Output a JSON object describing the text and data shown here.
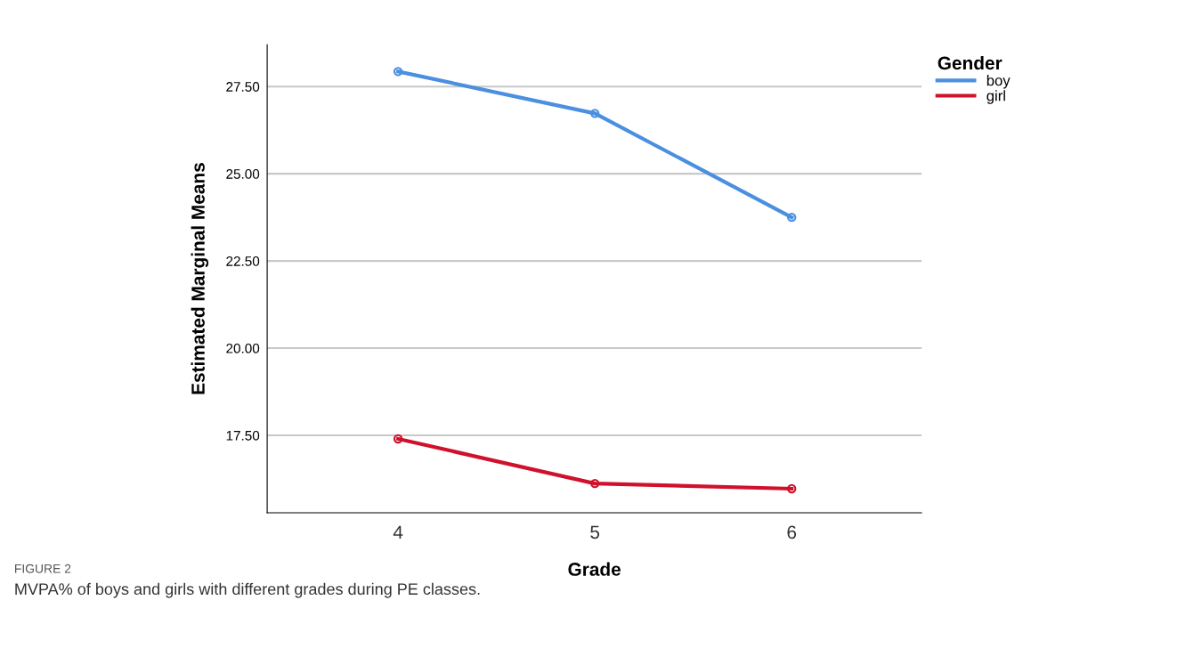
{
  "chart_data": {
    "type": "line",
    "xlabel": "Grade",
    "ylabel": "Estimated Marginal Means",
    "legend_title": "Gender",
    "categories": [
      "4",
      "5",
      "6"
    ],
    "series": [
      {
        "name": "boy",
        "color": "#4a8fe0",
        "values": [
          27.93,
          26.73,
          23.75
        ]
      },
      {
        "name": "girl",
        "color": "#d0112b",
        "values": [
          17.4,
          16.12,
          15.97
        ]
      }
    ],
    "ylim": [
      15.28,
      28.7
    ],
    "yticks": [
      {
        "value": 17.5,
        "label": "17.50"
      },
      {
        "value": 20,
        "label": "20.00"
      },
      {
        "value": 22.5,
        "label": "22.50"
      },
      {
        "value": 25,
        "label": "25.00"
      },
      {
        "value": 27.5,
        "label": "27.50"
      }
    ],
    "grid": "y",
    "legend": "top right",
    "marker": "circle",
    "line_style": "solid",
    "annotations": [
      "FIGURE 2",
      "MVPA% of boys and girls with different grades during PE classes."
    ]
  }
}
